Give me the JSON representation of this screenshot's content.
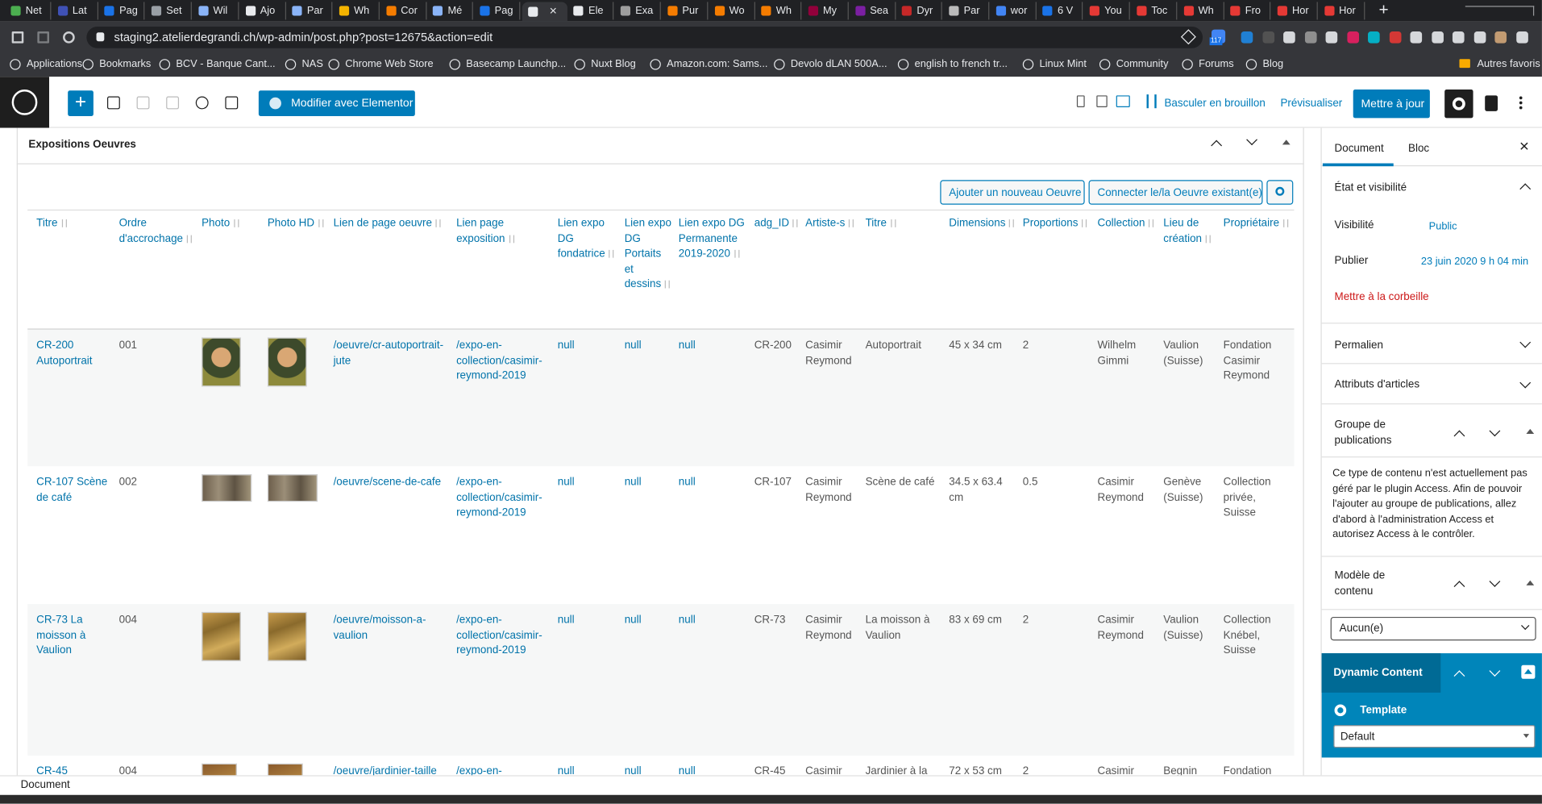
{
  "browser": {
    "tabs": [
      "Net",
      "Lat",
      "Pag",
      "Set",
      "Wil",
      "Ajo",
      "Par",
      "Wh",
      "Cor",
      "Mé",
      "Pag",
      "Ele",
      "Exa",
      "Pur",
      "Wo",
      "Wh",
      "My",
      "Sea",
      "Dyr",
      "Par",
      "wor",
      "6 V",
      "You",
      "Toc",
      "Wh",
      "Fro",
      "Hor",
      "Hor"
    ],
    "url": "staging2.atelierdegrandi.ch/wp-admin/post.php?post=12675&action=edit",
    "bookmarks": [
      "Applications",
      "Bookmarks",
      "BCV - Banque Cant...",
      "NAS",
      "Chrome Web Store",
      "Basecamp Launchp...",
      "Nuxt Blog",
      "Amazon.com: Sams...",
      "Devolo dLAN 500A...",
      "english to french tr...",
      "Linux Mint",
      "Community",
      "Forums",
      "Blog"
    ],
    "other_bookmarks": "Autres favoris",
    "extension_badge": "117"
  },
  "toolbar": {
    "elementor": "Modifier avec Elementor",
    "draft": "Basculer en brouillon",
    "preview": "Prévisualiser",
    "update": "Mettre à jour"
  },
  "metabox": {
    "title": "Expositions Oeuvres",
    "add_button": "Ajouter un nouveau Oeuvre",
    "connect_button": "Connecter le/la Oeuvre existant(e)"
  },
  "table": {
    "headers": [
      "Titre",
      "Ordre d'accrochage",
      "Photo",
      "Photo HD",
      "Lien de page oeuvre",
      "Lien page exposition",
      "Lien expo DG fondatrice",
      "Lien expo DG Portaits et dessins",
      "Lien expo DG Permanente 2019-2020",
      "adg_ID",
      "Artiste-s",
      "Titre",
      "Dimensions",
      "Proportions",
      "Collection",
      "Lieu de création",
      "Propriétaire"
    ],
    "rows": [
      [
        "CR-200 Autoportrait",
        "001",
        null,
        null,
        "/oeuvre/cr-autoportrait-jute",
        "/expo-en-collection/casimir-reymond-2019",
        "null",
        "null",
        "null",
        "CR-200",
        "Casimir Reymond",
        "Autoportrait",
        "45 x 34 cm",
        "2",
        "Wilhelm Gimmi",
        "Vaulion (Suisse)",
        "Fondation Casimir Reymond"
      ],
      [
        "CR-107 Scène de café",
        "002",
        null,
        null,
        "/oeuvre/scene-de-cafe",
        "/expo-en-collection/casimir-reymond-2019",
        "null",
        "null",
        "null",
        "CR-107",
        "Casimir Reymond",
        "Scène de café",
        "34.5 x 63.4 cm",
        "0.5",
        "Casimir Reymond",
        "Genève (Suisse)",
        "Collection privée, Suisse"
      ],
      [
        "CR-73 La moisson à Vaulion",
        "004",
        null,
        null,
        "/oeuvre/moisson-a-vaulion",
        "/expo-en-collection/casimir-reymond-2019",
        "null",
        "null",
        "null",
        "CR-73",
        "Casimir Reymond",
        "La moisson à Vaulion",
        "83 x 69 cm",
        "2",
        "Casimir Reymond",
        "Vaulion (Suisse)",
        "Collection Knébel, Suisse"
      ],
      [
        "CR-45",
        "004",
        null,
        null,
        "/oeuvre/jardinier-taille",
        "/expo-en-",
        "null",
        "null",
        "null",
        "CR-45",
        "Casimir",
        "Jardinier à la",
        "72 x 53 cm",
        "2",
        "Casimir",
        "Begnin",
        "Fondation"
      ]
    ]
  },
  "sidebar": {
    "tabs": [
      "Document",
      "Bloc"
    ],
    "status": {
      "title": "État et visibilité",
      "visibility_label": "Visibilité",
      "visibility_value": "Public",
      "publish_label": "Publier",
      "publish_value": "23 juin 2020 9 h 04 min",
      "trash": "Mettre à la corbeille"
    },
    "permalink": "Permalien",
    "attributes": "Attributs d'articles",
    "groups": {
      "title": "Groupe de publications",
      "notice": "Ce type de contenu n'est actuellement pas géré par le plugin Access. Afin de pouvoir l'ajouter au groupe de publications, allez d'abord à l'administration Access et autorisez Access à le contrôler."
    },
    "model": {
      "title": "Modèle de contenu",
      "select": "Aucun(e)"
    },
    "dynamic": {
      "title": "Dynamic Content",
      "template_label": "Template",
      "select": "Default"
    }
  },
  "footer": "Document"
}
